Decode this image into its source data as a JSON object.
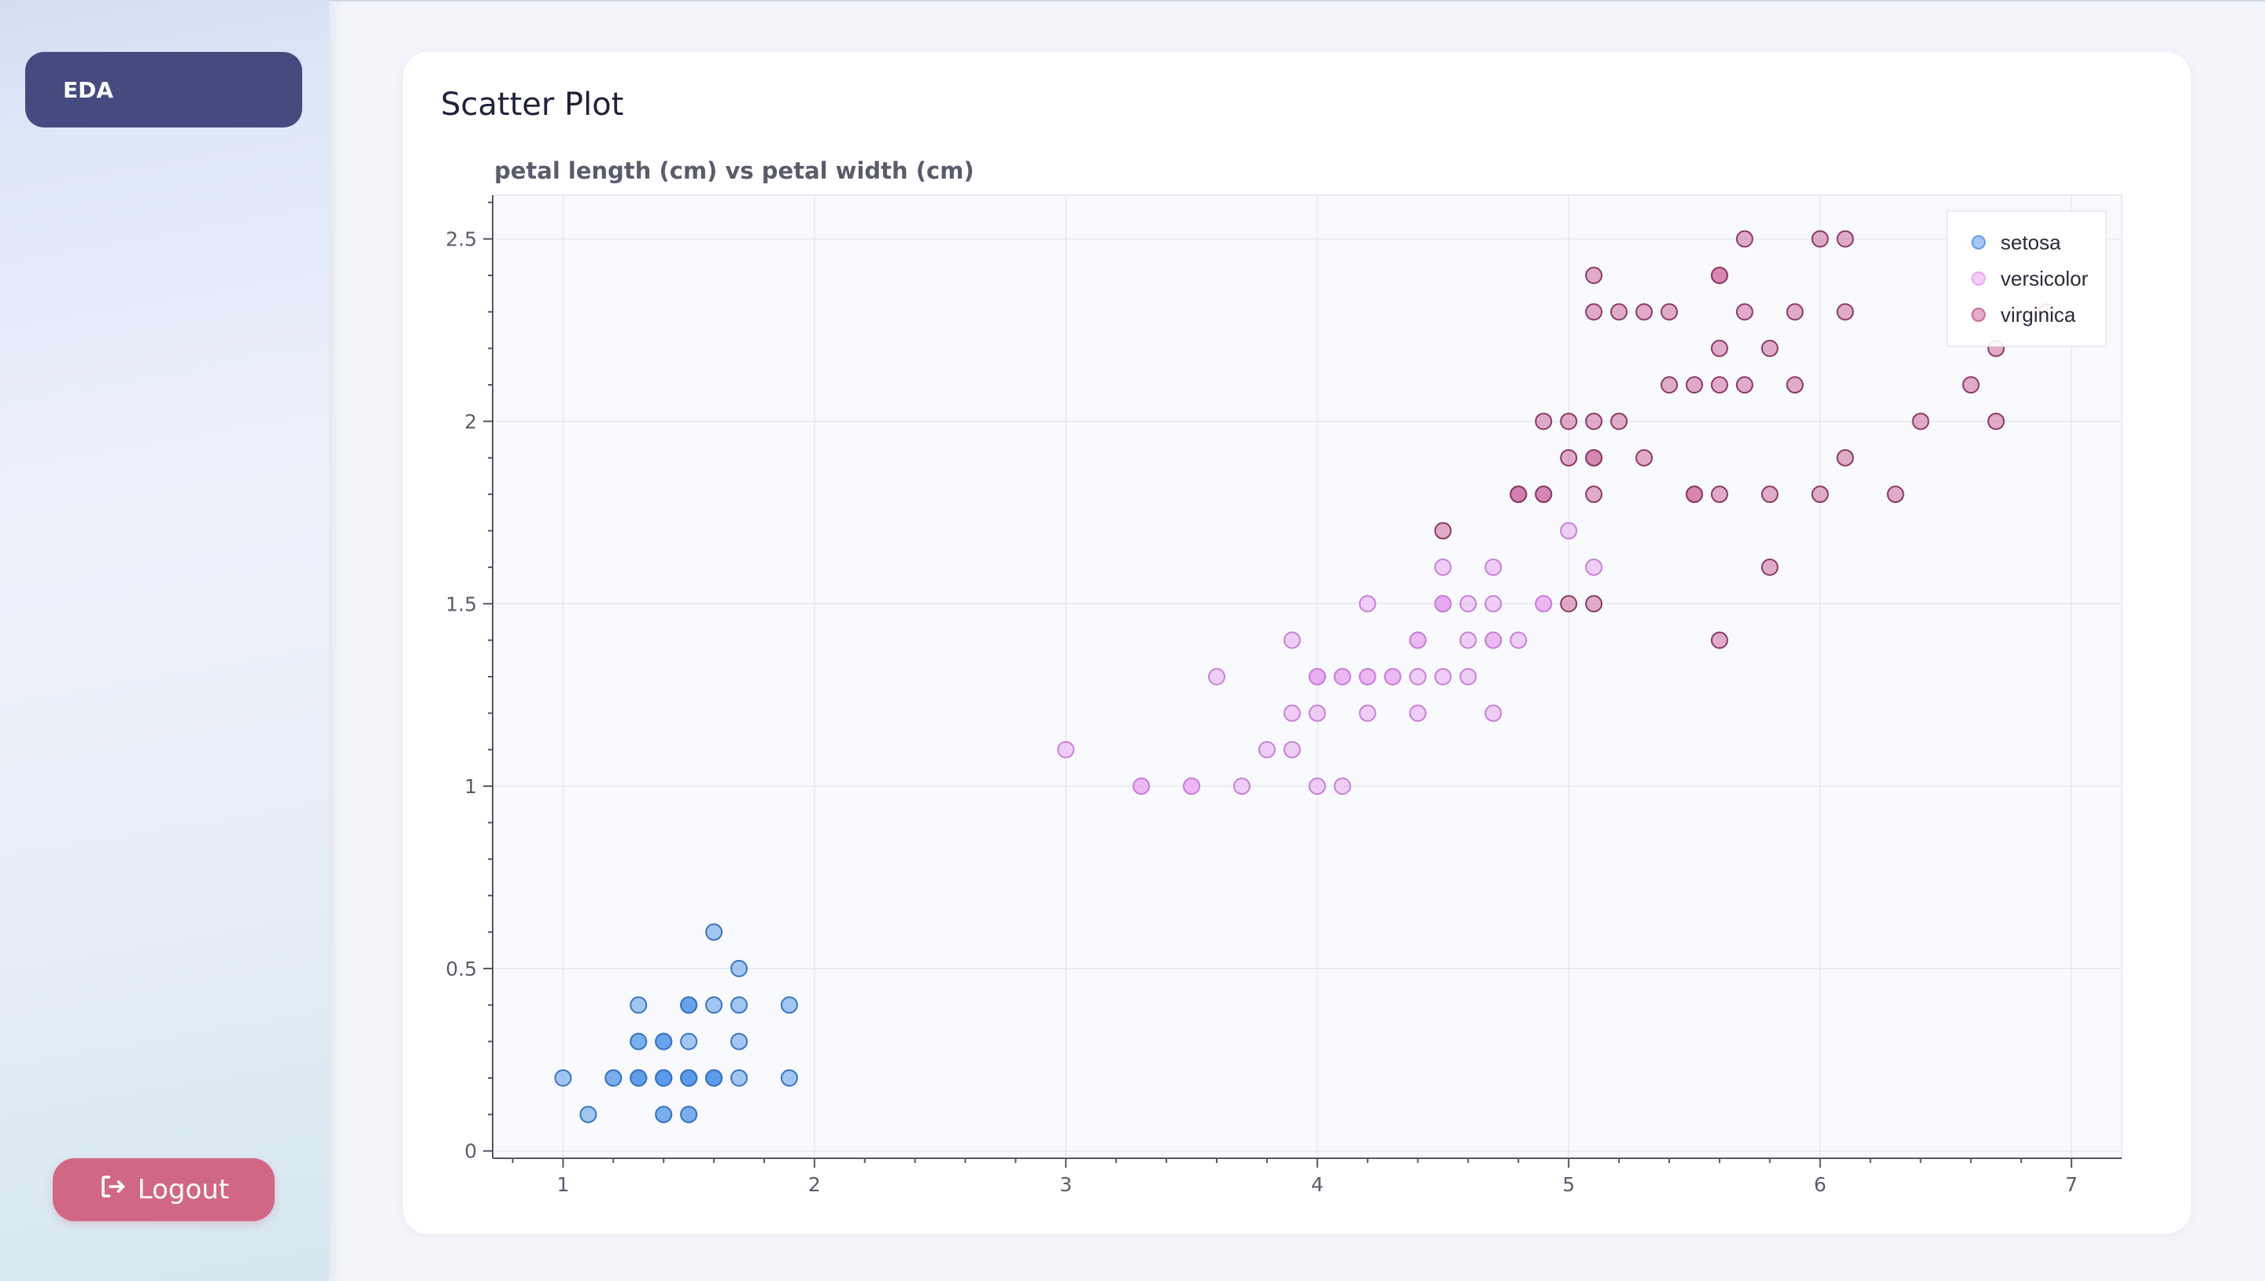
{
  "sidebar": {
    "nav_items": [
      {
        "label": "EDA"
      }
    ],
    "logout_label": "Logout",
    "accent": "#454a7f",
    "logout_color": "#d06785"
  },
  "card": {
    "title": "Scatter Plot"
  },
  "chart_data": {
    "type": "scatter",
    "title": "petal length (cm) vs petal width (cm)",
    "xlabel": "",
    "ylabel": "",
    "xlim": [
      0.72,
      7.2
    ],
    "ylim": [
      -0.02,
      2.62
    ],
    "xticks": [
      1,
      2,
      3,
      4,
      5,
      6,
      7
    ],
    "yticks": [
      0,
      0.5,
      1,
      1.5,
      2,
      2.5
    ],
    "grid": true,
    "legend_position": "top-right",
    "series": [
      {
        "name": "setosa",
        "color": "#5b9bea",
        "points": [
          [
            1.4,
            0.2
          ],
          [
            1.4,
            0.2
          ],
          [
            1.3,
            0.2
          ],
          [
            1.5,
            0.2
          ],
          [
            1.4,
            0.2
          ],
          [
            1.7,
            0.4
          ],
          [
            1.4,
            0.3
          ],
          [
            1.5,
            0.2
          ],
          [
            1.4,
            0.2
          ],
          [
            1.5,
            0.1
          ],
          [
            1.5,
            0.2
          ],
          [
            1.6,
            0.2
          ],
          [
            1.4,
            0.1
          ],
          [
            1.1,
            0.1
          ],
          [
            1.2,
            0.2
          ],
          [
            1.5,
            0.4
          ],
          [
            1.3,
            0.4
          ],
          [
            1.4,
            0.3
          ],
          [
            1.7,
            0.3
          ],
          [
            1.5,
            0.3
          ],
          [
            1.7,
            0.2
          ],
          [
            1.5,
            0.4
          ],
          [
            1.0,
            0.2
          ],
          [
            1.7,
            0.5
          ],
          [
            1.9,
            0.2
          ],
          [
            1.6,
            0.2
          ],
          [
            1.6,
            0.4
          ],
          [
            1.5,
            0.2
          ],
          [
            1.4,
            0.2
          ],
          [
            1.6,
            0.2
          ],
          [
            1.6,
            0.2
          ],
          [
            1.5,
            0.4
          ],
          [
            1.5,
            0.1
          ],
          [
            1.4,
            0.2
          ],
          [
            1.5,
            0.2
          ],
          [
            1.2,
            0.2
          ],
          [
            1.3,
            0.2
          ],
          [
            1.4,
            0.1
          ],
          [
            1.3,
            0.2
          ],
          [
            1.5,
            0.2
          ],
          [
            1.3,
            0.3
          ],
          [
            1.3,
            0.3
          ],
          [
            1.3,
            0.2
          ],
          [
            1.6,
            0.6
          ],
          [
            1.9,
            0.4
          ],
          [
            1.4,
            0.3
          ],
          [
            1.6,
            0.2
          ],
          [
            1.4,
            0.2
          ],
          [
            1.5,
            0.2
          ],
          [
            1.4,
            0.2
          ]
        ]
      },
      {
        "name": "versicolor",
        "color": "#e8a8f2",
        "points": [
          [
            4.7,
            1.4
          ],
          [
            4.5,
            1.5
          ],
          [
            4.9,
            1.5
          ],
          [
            4.0,
            1.3
          ],
          [
            4.6,
            1.5
          ],
          [
            4.5,
            1.3
          ],
          [
            4.7,
            1.6
          ],
          [
            3.3,
            1.0
          ],
          [
            4.6,
            1.3
          ],
          [
            3.9,
            1.4
          ],
          [
            3.5,
            1.0
          ],
          [
            4.2,
            1.5
          ],
          [
            4.0,
            1.0
          ],
          [
            4.7,
            1.4
          ],
          [
            3.6,
            1.3
          ],
          [
            4.4,
            1.4
          ],
          [
            4.5,
            1.5
          ],
          [
            4.1,
            1.0
          ],
          [
            4.5,
            1.5
          ],
          [
            3.9,
            1.1
          ],
          [
            4.8,
            1.8
          ],
          [
            4.0,
            1.3
          ],
          [
            4.9,
            1.5
          ],
          [
            4.7,
            1.2
          ],
          [
            4.3,
            1.3
          ],
          [
            4.4,
            1.4
          ],
          [
            4.8,
            1.4
          ],
          [
            5.0,
            1.7
          ],
          [
            4.5,
            1.5
          ],
          [
            3.5,
            1.0
          ],
          [
            3.8,
            1.1
          ],
          [
            3.7,
            1.0
          ],
          [
            3.9,
            1.2
          ],
          [
            5.1,
            1.6
          ],
          [
            4.5,
            1.5
          ],
          [
            4.5,
            1.6
          ],
          [
            4.7,
            1.5
          ],
          [
            4.4,
            1.3
          ],
          [
            4.1,
            1.3
          ],
          [
            4.0,
            1.3
          ],
          [
            4.4,
            1.2
          ],
          [
            4.6,
            1.4
          ],
          [
            4.0,
            1.2
          ],
          [
            3.3,
            1.0
          ],
          [
            4.2,
            1.3
          ],
          [
            4.2,
            1.2
          ],
          [
            4.2,
            1.3
          ],
          [
            4.3,
            1.3
          ],
          [
            3.0,
            1.1
          ],
          [
            4.1,
            1.3
          ]
        ]
      },
      {
        "name": "virginica",
        "color": "#cc6a9e",
        "points": [
          [
            6.0,
            2.5
          ],
          [
            5.1,
            1.9
          ],
          [
            5.9,
            2.1
          ],
          [
            5.6,
            1.8
          ],
          [
            5.8,
            2.2
          ],
          [
            6.6,
            2.1
          ],
          [
            4.5,
            1.7
          ],
          [
            6.3,
            1.8
          ],
          [
            5.8,
            1.8
          ],
          [
            6.1,
            2.5
          ],
          [
            5.1,
            2.0
          ],
          [
            5.3,
            1.9
          ],
          [
            5.5,
            2.1
          ],
          [
            5.0,
            2.0
          ],
          [
            5.1,
            2.4
          ],
          [
            5.3,
            2.3
          ],
          [
            5.5,
            1.8
          ],
          [
            6.7,
            2.2
          ],
          [
            6.9,
            2.3
          ],
          [
            5.0,
            1.5
          ],
          [
            5.7,
            2.3
          ],
          [
            4.9,
            2.0
          ],
          [
            6.7,
            2.0
          ],
          [
            4.9,
            1.8
          ],
          [
            5.7,
            2.1
          ],
          [
            6.0,
            1.8
          ],
          [
            4.8,
            1.8
          ],
          [
            4.9,
            1.8
          ],
          [
            5.6,
            2.1
          ],
          [
            5.8,
            1.6
          ],
          [
            6.1,
            1.9
          ],
          [
            6.4,
            2.0
          ],
          [
            5.6,
            2.2
          ],
          [
            5.1,
            1.5
          ],
          [
            5.6,
            1.4
          ],
          [
            6.1,
            2.3
          ],
          [
            5.6,
            2.4
          ],
          [
            5.5,
            1.8
          ],
          [
            4.8,
            1.8
          ],
          [
            5.4,
            2.1
          ],
          [
            5.6,
            2.4
          ],
          [
            5.1,
            2.3
          ],
          [
            5.1,
            1.9
          ],
          [
            5.9,
            2.3
          ],
          [
            5.7,
            2.5
          ],
          [
            5.2,
            2.3
          ],
          [
            5.0,
            1.9
          ],
          [
            5.2,
            2.0
          ],
          [
            5.4,
            2.3
          ],
          [
            5.1,
            1.8
          ]
        ]
      }
    ]
  }
}
